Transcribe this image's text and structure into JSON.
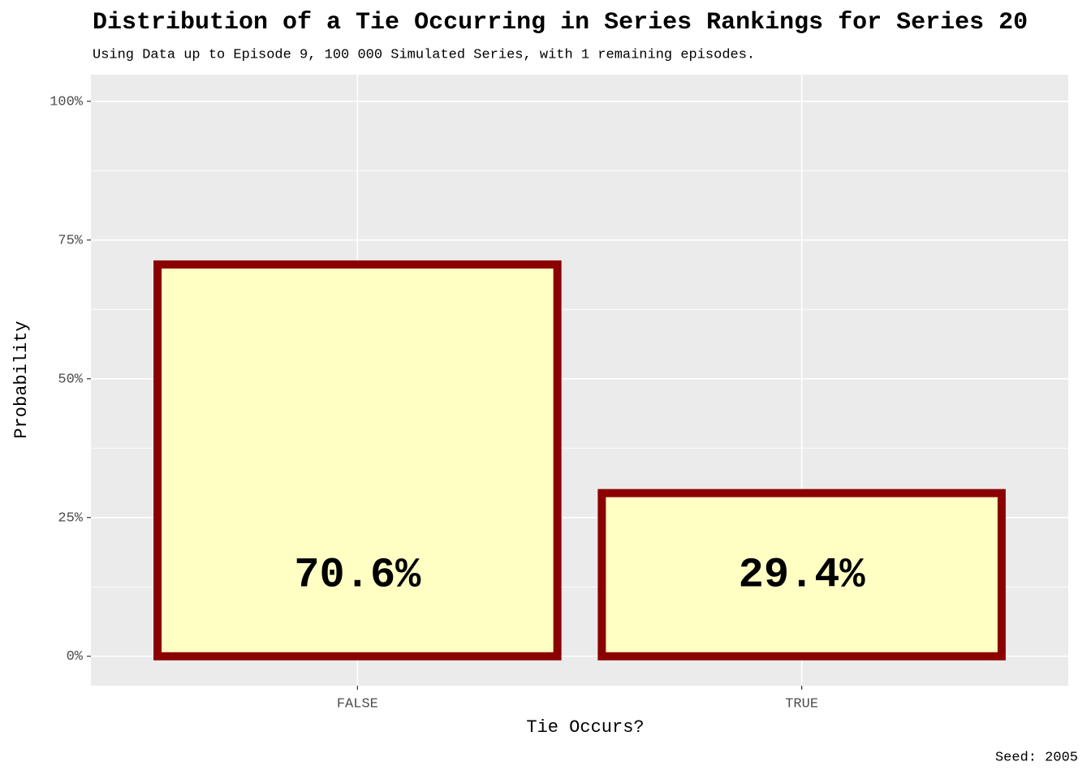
{
  "chart_data": {
    "type": "bar",
    "title": "Distribution of a Tie Occurring in Series Rankings for Series 20",
    "subtitle": "Using Data up to Episode 9, 100 000 Simulated Series, with 1 remaining episodes.",
    "caption": "Seed: 2005",
    "x_label": "Tie Occurs?",
    "y_label": "Probability",
    "categories": [
      "FALSE",
      "TRUE"
    ],
    "values": [
      70.6,
      29.4
    ],
    "value_labels": [
      "70.6%",
      "29.4%"
    ],
    "color": "#ffffc4",
    "edge_color": "#8b0000",
    "ylim": [
      -5.3,
      104.8
    ],
    "yticks": [
      {
        "value": 0,
        "label": "0%"
      },
      {
        "value": 25,
        "label": "25%"
      },
      {
        "value": 50,
        "label": "50%"
      },
      {
        "value": 75,
        "label": "75%"
      },
      {
        "value": 100,
        "label": "100%"
      }
    ],
    "grid": true
  }
}
